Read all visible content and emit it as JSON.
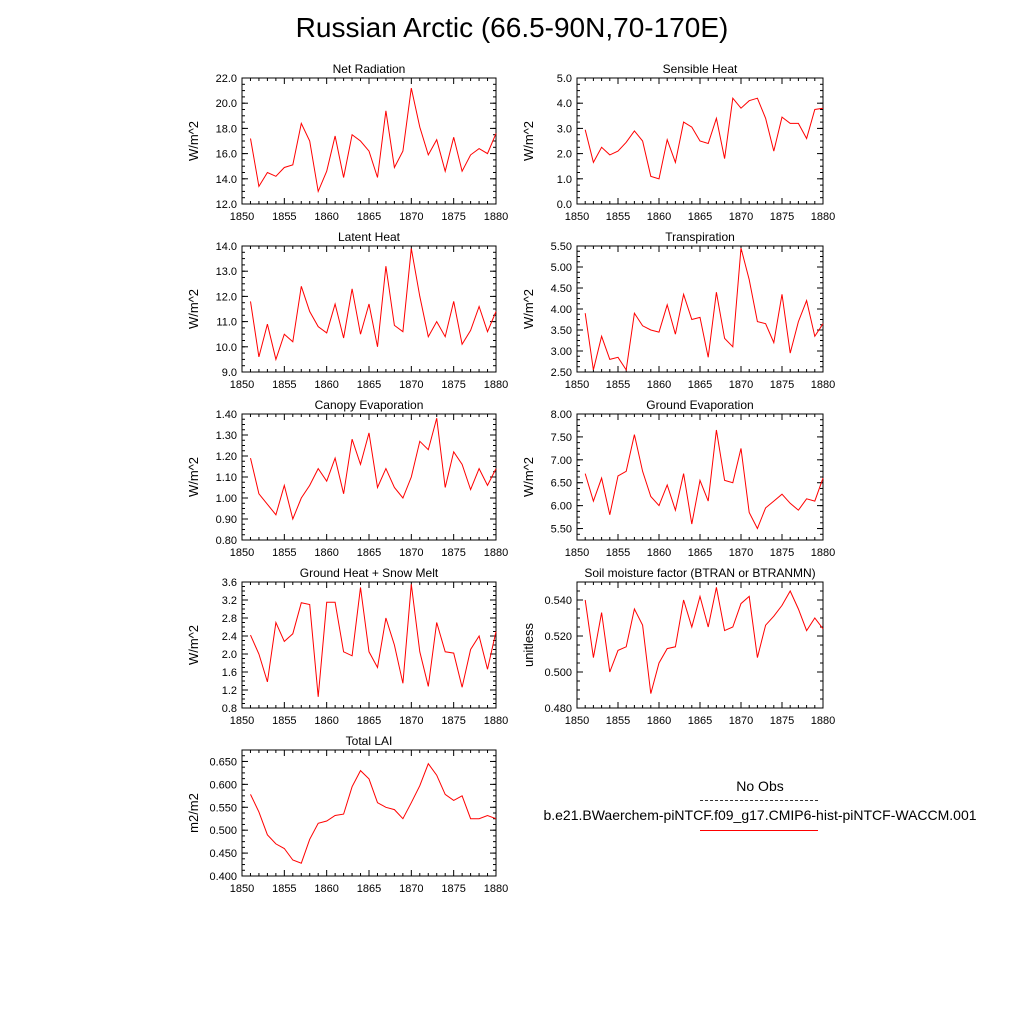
{
  "title": "Russian Arctic (66.5-90N,70-170E)",
  "legend": {
    "obs_label": "No Obs",
    "model_label": "b.e21.BWaerchem-piNTCF.f09_g17.CMIP6-hist-piNTCF-WACCM.001",
    "obs_color": "#333333",
    "model_color": "#ff0000"
  },
  "chart_data": [
    {
      "type": "line",
      "title": "Net Radiation",
      "ylabel": "W/m^2",
      "xlim": [
        1850,
        1880
      ],
      "ylim": [
        12,
        22
      ],
      "xticks": [
        "1850",
        "1855",
        "1860",
        "1865",
        "1870",
        "1875",
        "1880"
      ],
      "yticks": [
        "12.0",
        "14.0",
        "16.0",
        "18.0",
        "20.0",
        "22.0"
      ],
      "x": [
        1851,
        1852,
        1853,
        1854,
        1855,
        1856,
        1857,
        1858,
        1859,
        1860,
        1861,
        1862,
        1863,
        1864,
        1865,
        1866,
        1867,
        1868,
        1869,
        1870,
        1871,
        1872,
        1873,
        1874,
        1875,
        1876,
        1877,
        1878,
        1879,
        1880
      ],
      "values": [
        17.2,
        13.4,
        14.5,
        14.2,
        14.9,
        15.1,
        18.4,
        17.0,
        13.0,
        14.6,
        17.4,
        14.1,
        17.5,
        17.0,
        16.2,
        14.1,
        19.4,
        14.9,
        16.2,
        21.2,
        18.1,
        15.9,
        17.1,
        14.6,
        17.3,
        14.6,
        15.9,
        16.4,
        16.0,
        17.6
      ],
      "color": "#ff0000"
    },
    {
      "type": "line",
      "title": "Sensible Heat",
      "ylabel": "W/m^2",
      "xlim": [
        1850,
        1880
      ],
      "ylim": [
        0,
        5
      ],
      "xticks": [
        "1850",
        "1855",
        "1860",
        "1865",
        "1870",
        "1875",
        "1880"
      ],
      "yticks": [
        "0.0",
        "1.0",
        "2.0",
        "3.0",
        "4.0",
        "5.0"
      ],
      "x": [
        1851,
        1852,
        1853,
        1854,
        1855,
        1856,
        1857,
        1858,
        1859,
        1860,
        1861,
        1862,
        1863,
        1864,
        1865,
        1866,
        1867,
        1868,
        1869,
        1870,
        1871,
        1872,
        1873,
        1874,
        1875,
        1876,
        1877,
        1878,
        1879,
        1880
      ],
      "values": [
        2.95,
        1.65,
        2.25,
        1.95,
        2.1,
        2.45,
        2.9,
        2.5,
        1.1,
        1.0,
        2.55,
        1.65,
        3.25,
        3.05,
        2.5,
        2.4,
        3.4,
        1.8,
        4.2,
        3.8,
        4.1,
        4.2,
        3.4,
        2.1,
        3.45,
        3.2,
        3.2,
        2.6,
        3.75,
        3.8
      ],
      "color": "#ff0000"
    },
    {
      "type": "line",
      "title": "Latent Heat",
      "ylabel": "W/m^2",
      "xlim": [
        1850,
        1880
      ],
      "ylim": [
        9,
        14
      ],
      "xticks": [
        "1850",
        "1855",
        "1860",
        "1865",
        "1870",
        "1875",
        "1880"
      ],
      "yticks": [
        "9.0",
        "10.0",
        "11.0",
        "12.0",
        "13.0",
        "14.0"
      ],
      "x": [
        1851,
        1852,
        1853,
        1854,
        1855,
        1856,
        1857,
        1858,
        1859,
        1860,
        1861,
        1862,
        1863,
        1864,
        1865,
        1866,
        1867,
        1868,
        1869,
        1870,
        1871,
        1872,
        1873,
        1874,
        1875,
        1876,
        1877,
        1878,
        1879,
        1880
      ],
      "values": [
        11.8,
        9.6,
        10.9,
        9.5,
        10.5,
        10.2,
        12.4,
        11.4,
        10.8,
        10.55,
        11.7,
        10.35,
        12.3,
        10.5,
        11.7,
        10.0,
        13.2,
        10.85,
        10.6,
        13.9,
        12.0,
        10.4,
        11.0,
        10.4,
        11.8,
        10.1,
        10.65,
        11.6,
        10.6,
        11.4
      ],
      "color": "#ff0000"
    },
    {
      "type": "line",
      "title": "Transpiration",
      "ylabel": "W/m^2",
      "xlim": [
        1850,
        1880
      ],
      "ylim": [
        2.5,
        5.5
      ],
      "xticks": [
        "1850",
        "1855",
        "1860",
        "1865",
        "1870",
        "1875",
        "1880"
      ],
      "yticks": [
        "2.50",
        "3.00",
        "3.50",
        "4.00",
        "4.50",
        "5.00",
        "5.50"
      ],
      "x": [
        1851,
        1852,
        1853,
        1854,
        1855,
        1856,
        1857,
        1858,
        1859,
        1860,
        1861,
        1862,
        1863,
        1864,
        1865,
        1866,
        1867,
        1868,
        1869,
        1870,
        1871,
        1872,
        1873,
        1874,
        1875,
        1876,
        1877,
        1878,
        1879,
        1880
      ],
      "values": [
        3.9,
        2.55,
        3.35,
        2.8,
        2.85,
        2.55,
        3.9,
        3.6,
        3.5,
        3.45,
        4.1,
        3.4,
        4.35,
        3.75,
        3.8,
        2.85,
        4.4,
        3.3,
        3.1,
        5.45,
        4.7,
        3.7,
        3.65,
        3.2,
        4.35,
        2.95,
        3.7,
        4.2,
        3.35,
        3.65
      ],
      "color": "#ff0000"
    },
    {
      "type": "line",
      "title": "Canopy Evaporation",
      "ylabel": "W/m^2",
      "xlim": [
        1850,
        1880
      ],
      "ylim": [
        0.8,
        1.4
      ],
      "xticks": [
        "1850",
        "1855",
        "1860",
        "1865",
        "1870",
        "1875",
        "1880"
      ],
      "yticks": [
        "0.80",
        "0.90",
        "1.00",
        "1.10",
        "1.20",
        "1.30",
        "1.40"
      ],
      "x": [
        1851,
        1852,
        1853,
        1854,
        1855,
        1856,
        1857,
        1858,
        1859,
        1860,
        1861,
        1862,
        1863,
        1864,
        1865,
        1866,
        1867,
        1868,
        1869,
        1870,
        1871,
        1872,
        1873,
        1874,
        1875,
        1876,
        1877,
        1878,
        1879,
        1880
      ],
      "values": [
        1.19,
        1.02,
        0.97,
        0.92,
        1.06,
        0.9,
        1.0,
        1.06,
        1.14,
        1.08,
        1.19,
        1.02,
        1.28,
        1.16,
        1.31,
        1.05,
        1.14,
        1.05,
        1.0,
        1.1,
        1.27,
        1.23,
        1.38,
        1.05,
        1.22,
        1.16,
        1.04,
        1.14,
        1.06,
        1.14
      ],
      "color": "#ff0000"
    },
    {
      "type": "line",
      "title": "Ground Evaporation",
      "ylabel": "W/m^2",
      "xlim": [
        1850,
        1880
      ],
      "ylim": [
        5.25,
        8.0
      ],
      "xticks": [
        "1850",
        "1855",
        "1860",
        "1865",
        "1870",
        "1875",
        "1880"
      ],
      "yticks": [
        "5.50",
        "6.00",
        "6.50",
        "7.00",
        "7.50",
        "8.00"
      ],
      "x": [
        1851,
        1852,
        1853,
        1854,
        1855,
        1856,
        1857,
        1858,
        1859,
        1860,
        1861,
        1862,
        1863,
        1864,
        1865,
        1866,
        1867,
        1868,
        1869,
        1870,
        1871,
        1872,
        1873,
        1874,
        1875,
        1876,
        1877,
        1878,
        1879,
        1880
      ],
      "values": [
        6.7,
        6.1,
        6.6,
        5.8,
        6.65,
        6.75,
        7.55,
        6.75,
        6.2,
        6.0,
        6.45,
        5.9,
        6.7,
        5.6,
        6.55,
        6.1,
        7.65,
        6.55,
        6.5,
        7.25,
        5.85,
        5.5,
        5.95,
        6.1,
        6.25,
        6.05,
        5.9,
        6.15,
        6.1,
        6.6
      ],
      "color": "#ff0000"
    },
    {
      "type": "line",
      "title": "Ground Heat + Snow Melt",
      "ylabel": "W/m^2",
      "xlim": [
        1850,
        1880
      ],
      "ylim": [
        0.8,
        3.6
      ],
      "xticks": [
        "1850",
        "1855",
        "1860",
        "1865",
        "1870",
        "1875",
        "1880"
      ],
      "yticks": [
        "0.8",
        "1.2",
        "1.6",
        "2.0",
        "2.4",
        "2.8",
        "3.2",
        "3.6"
      ],
      "x": [
        1851,
        1852,
        1853,
        1854,
        1855,
        1856,
        1857,
        1858,
        1859,
        1860,
        1861,
        1862,
        1863,
        1864,
        1865,
        1866,
        1867,
        1868,
        1869,
        1870,
        1871,
        1872,
        1873,
        1874,
        1875,
        1876,
        1877,
        1878,
        1879,
        1880
      ],
      "values": [
        2.42,
        2.0,
        1.38,
        2.7,
        2.28,
        2.45,
        3.14,
        3.1,
        1.05,
        3.15,
        3.15,
        2.05,
        1.96,
        3.48,
        2.05,
        1.7,
        2.8,
        2.2,
        1.35,
        3.55,
        2.05,
        1.28,
        2.7,
        2.05,
        2.02,
        1.26,
        2.1,
        2.4,
        1.66,
        2.5
      ],
      "color": "#ff0000"
    },
    {
      "type": "line",
      "title": "Soil moisture factor (BTRAN or BTRANMN)",
      "ylabel": "unitless",
      "xlim": [
        1850,
        1880
      ],
      "ylim": [
        0.48,
        0.55
      ],
      "xticks": [
        "1850",
        "1855",
        "1860",
        "1865",
        "1870",
        "1875",
        "1880"
      ],
      "yticks": [
        "0.480",
        "0.500",
        "0.520",
        "0.540"
      ],
      "x": [
        1851,
        1852,
        1853,
        1854,
        1855,
        1856,
        1857,
        1858,
        1859,
        1860,
        1861,
        1862,
        1863,
        1864,
        1865,
        1866,
        1867,
        1868,
        1869,
        1870,
        1871,
        1872,
        1873,
        1874,
        1875,
        1876,
        1877,
        1878,
        1879,
        1880
      ],
      "values": [
        0.54,
        0.508,
        0.533,
        0.5,
        0.512,
        0.514,
        0.535,
        0.526,
        0.488,
        0.505,
        0.513,
        0.514,
        0.54,
        0.525,
        0.542,
        0.525,
        0.547,
        0.523,
        0.525,
        0.538,
        0.542,
        0.508,
        0.526,
        0.531,
        0.537,
        0.545,
        0.535,
        0.523,
        0.53,
        0.524
      ],
      "color": "#ff0000"
    },
    {
      "type": "line",
      "title": "Total LAI",
      "ylabel": "m2/m2",
      "xlim": [
        1850,
        1880
      ],
      "ylim": [
        0.4,
        0.675
      ],
      "xticks": [
        "1850",
        "1855",
        "1860",
        "1865",
        "1870",
        "1875",
        "1880"
      ],
      "yticks": [
        "0.400",
        "0.450",
        "0.500",
        "0.550",
        "0.600",
        "0.650"
      ],
      "x": [
        1851,
        1852,
        1853,
        1854,
        1855,
        1856,
        1857,
        1858,
        1859,
        1860,
        1861,
        1862,
        1863,
        1864,
        1865,
        1866,
        1867,
        1868,
        1869,
        1870,
        1871,
        1872,
        1873,
        1874,
        1875,
        1876,
        1877,
        1878,
        1879,
        1880
      ],
      "values": [
        0.578,
        0.54,
        0.49,
        0.47,
        0.46,
        0.435,
        0.428,
        0.48,
        0.515,
        0.52,
        0.532,
        0.535,
        0.595,
        0.63,
        0.612,
        0.56,
        0.55,
        0.545,
        0.525,
        0.56,
        0.597,
        0.645,
        0.62,
        0.578,
        0.565,
        0.575,
        0.525,
        0.525,
        0.532,
        0.525
      ],
      "color": "#ff0000"
    }
  ]
}
